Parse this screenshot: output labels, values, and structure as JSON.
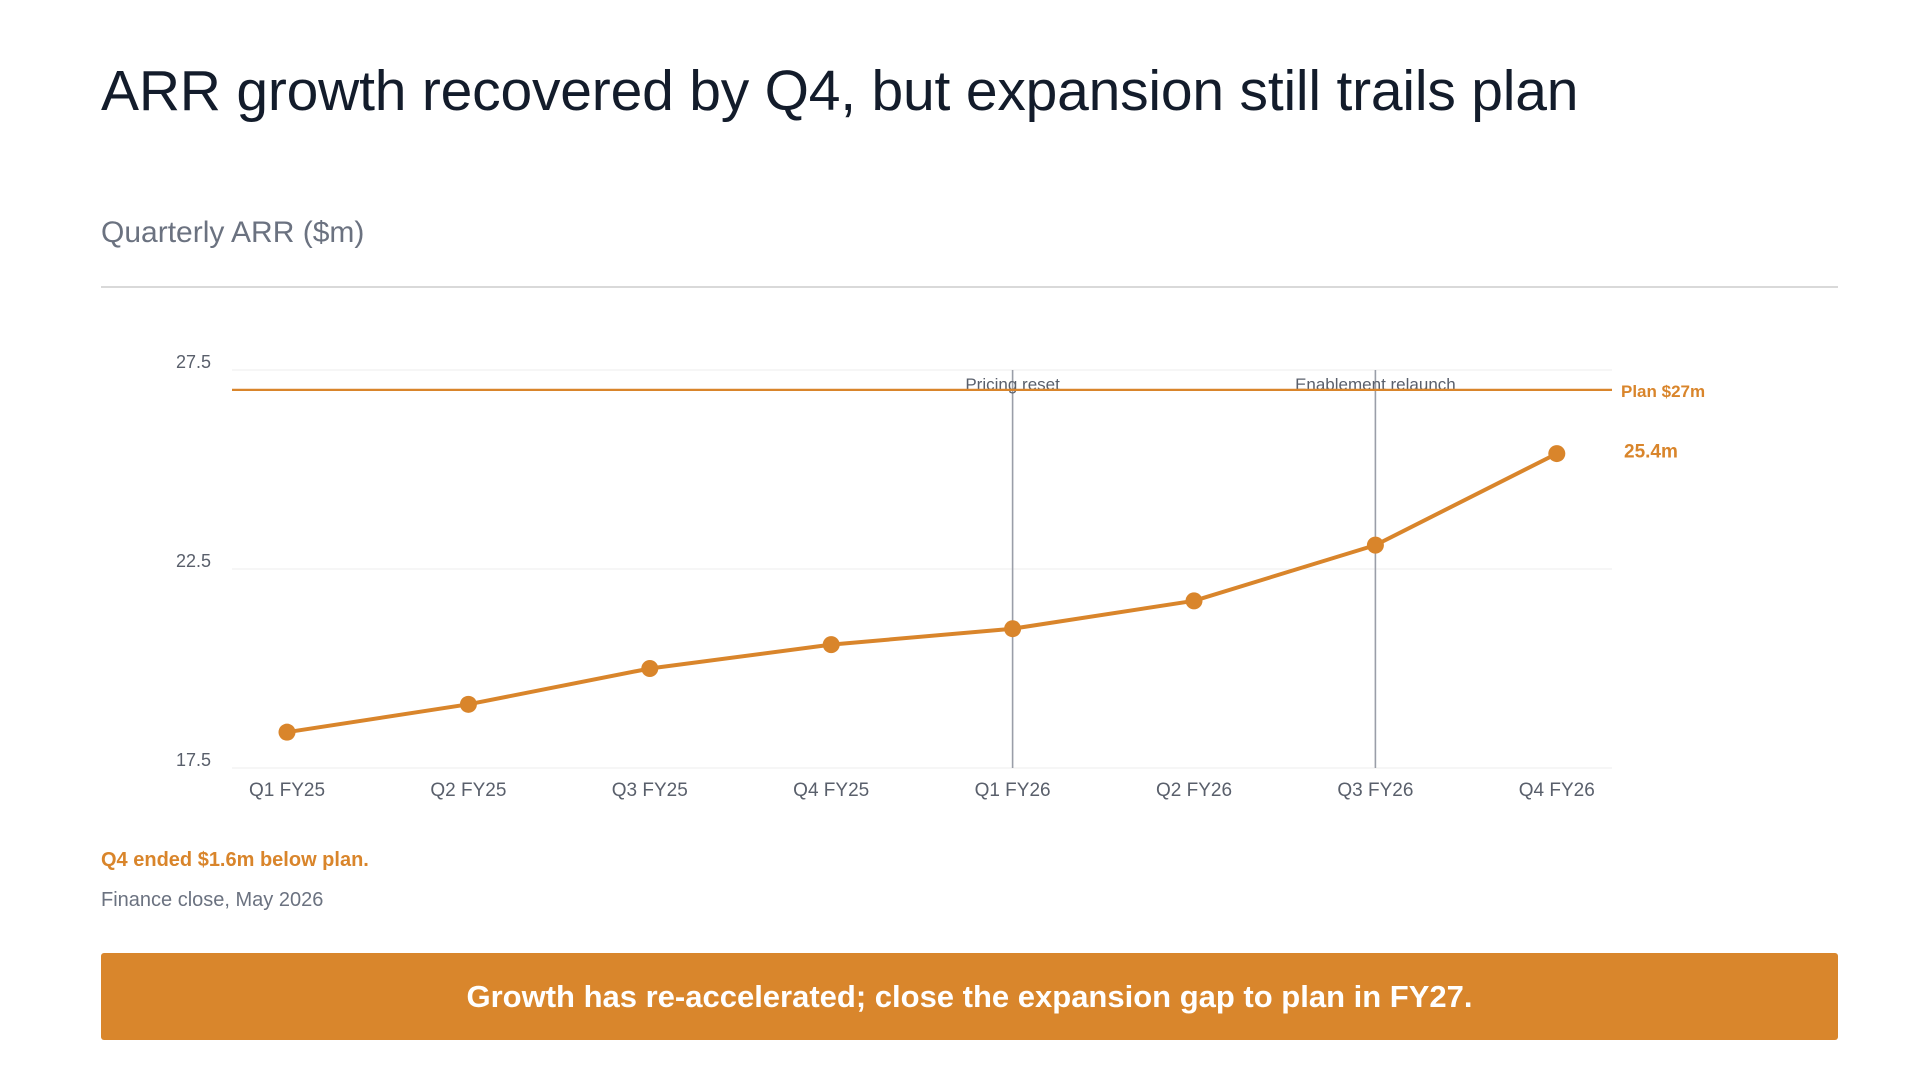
{
  "slide": {
    "headline": "ARR growth recovered by Q4, but expansion still trails plan",
    "gap_note": "Q4 ended $1.6m below plan.",
    "source_note": "Finance close, May 2026",
    "takeaway": "Growth has re-accelerated; close the expansion gap to plan in FY27."
  },
  "chart_data": {
    "type": "line",
    "title": "Quarterly ARR ($m)",
    "xlabel": "",
    "ylabel": "",
    "categories": [
      "Q1 FY25",
      "Q2 FY25",
      "Q3 FY25",
      "Q4 FY25",
      "Q1 FY26",
      "Q2 FY26",
      "Q3 FY26",
      "Q4 FY26"
    ],
    "series": [
      {
        "values": [
          18.4,
          19.1,
          20.0,
          20.6,
          21.0,
          21.7,
          23.1,
          25.4
        ]
      }
    ],
    "end_label": "25.4m",
    "yticks": [
      27.5,
      22.5,
      17.5
    ],
    "ytick_labels": [
      "27.5",
      "22.5",
      "17.5"
    ],
    "ylim": [
      17.5,
      27.5
    ],
    "grid": true,
    "reference_line": {
      "value": 27,
      "label": "Plan $27m"
    },
    "annotations": [
      {
        "category": "Q1 FY26",
        "label": "Pricing reset"
      },
      {
        "category": "Q3 FY26",
        "label": "Enablement relaunch"
      }
    ],
    "colors": {
      "series": "#d9852b",
      "plan": "#d9852b",
      "marker_line": "#9a9ea8",
      "grid": "#eeeeee",
      "tick_text": "#595f6b",
      "annotation_text": "#595f6b"
    }
  }
}
